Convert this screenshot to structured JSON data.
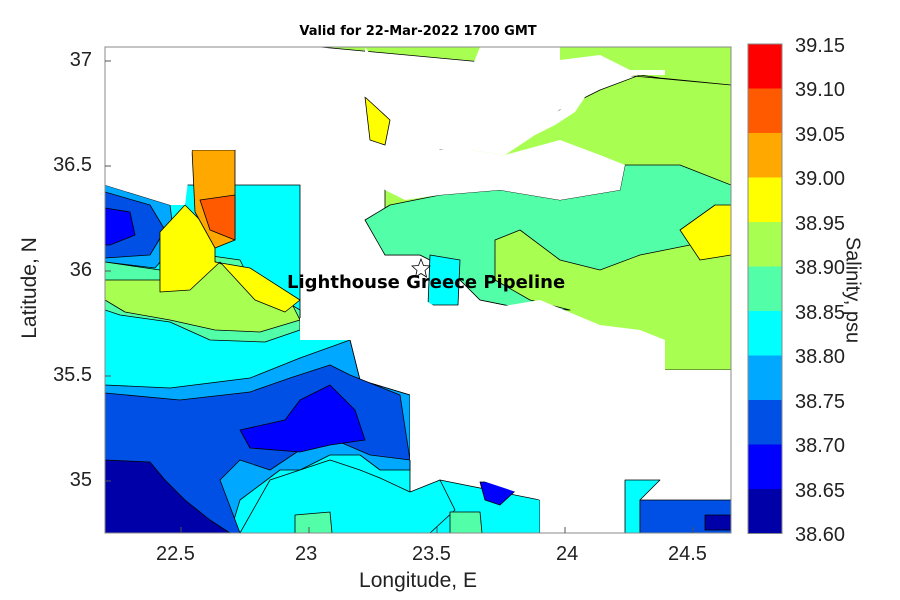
{
  "title": "Valid for 22-Mar-2022 1700 GMT",
  "xlabel": "Longitude, E",
  "ylabel": "Latitude, N",
  "colorbar_title": "Salinity, psu",
  "point_label": "Lighthouse Greece Pipeline",
  "x_ticks": [
    "22.5",
    "23",
    "23.5",
    "24",
    "24.5"
  ],
  "y_ticks": [
    "37",
    "36.5",
    "36",
    "35.5",
    "35"
  ],
  "colorbar_ticks": [
    "39.15",
    "39.10",
    "39.05",
    "39.00",
    "38.95",
    "38.90",
    "38.85",
    "38.80",
    "38.75",
    "38.70",
    "38.65",
    "38.60"
  ],
  "colors": {
    "l1": "#0000a8",
    "l2": "#0000ff",
    "l3": "#0050e6",
    "l4": "#00a8ff",
    "l5": "#00ffff",
    "l6": "#52ffa8",
    "l7": "#a8ff52",
    "l8": "#ffff00",
    "l9": "#ffa800",
    "l10": "#ff5a00",
    "l11": "#ff0000"
  },
  "chart_data": {
    "type": "heatmap",
    "title": "Valid for 22-Mar-2022 1700 GMT",
    "xlabel": "Longitude, E",
    "ylabel": "Latitude, N",
    "xlim": [
      22.22,
      24.65
    ],
    "ylim": [
      34.73,
      37.07
    ],
    "colorbar": {
      "label": "Salinity, psu",
      "min": 38.6,
      "max": 39.15,
      "step": 0.05
    },
    "marker": {
      "name": "Lighthouse Greece Pipeline",
      "lon": 23.43,
      "lat": 36.0
    }
  }
}
